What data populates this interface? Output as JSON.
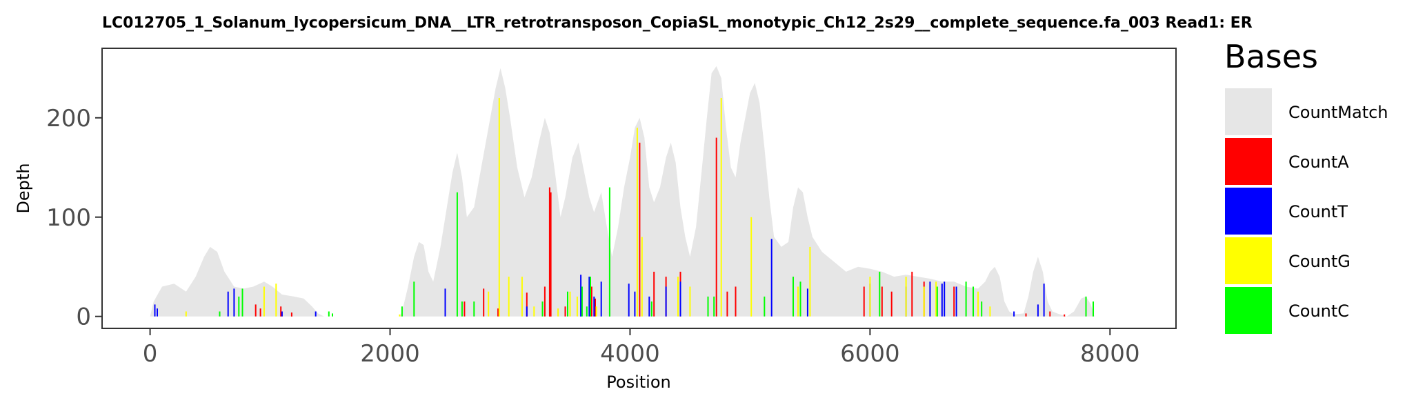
{
  "chart_data": {
    "type": "bar",
    "title": "LC012705_1_Solanum_lycopersicum_DNA__LTR_retrotransposon_CopiaSL_monotypic_Ch12_2s29__complete_sequence.fa_003   Read1: ER",
    "xlabel": "Position",
    "ylabel": "Depth",
    "xlim": [
      -400,
      8550
    ],
    "ylim": [
      -12,
      270
    ],
    "x_ticks": [
      0,
      2000,
      4000,
      6000,
      8000
    ],
    "y_ticks": [
      0,
      100,
      200
    ],
    "legend": {
      "title": "Bases",
      "position": "right",
      "entries": [
        {
          "name": "CountMatch",
          "color": "#e6e6e6"
        },
        {
          "name": "CountA",
          "color": "#ff0000"
        },
        {
          "name": "CountT",
          "color": "#0000ff"
        },
        {
          "name": "CountG",
          "color": "#ffff00"
        },
        {
          "name": "CountC",
          "color": "#00ff00"
        }
      ]
    },
    "coverage": [
      [
        0,
        0
      ],
      [
        30,
        15
      ],
      [
        100,
        30
      ],
      [
        200,
        33
      ],
      [
        300,
        25
      ],
      [
        380,
        40
      ],
      [
        450,
        60
      ],
      [
        500,
        70
      ],
      [
        560,
        65
      ],
      [
        620,
        45
      ],
      [
        700,
        30
      ],
      [
        780,
        28
      ],
      [
        860,
        30
      ],
      [
        950,
        35
      ],
      [
        1020,
        30
      ],
      [
        1100,
        22
      ],
      [
        1200,
        20
      ],
      [
        1280,
        18
      ],
      [
        1350,
        10
      ],
      [
        1400,
        3
      ],
      [
        1450,
        0
      ],
      [
        2080,
        0
      ],
      [
        2100,
        5
      ],
      [
        2150,
        30
      ],
      [
        2200,
        60
      ],
      [
        2240,
        75
      ],
      [
        2280,
        72
      ],
      [
        2320,
        45
      ],
      [
        2360,
        35
      ],
      [
        2420,
        70
      ],
      [
        2480,
        115
      ],
      [
        2520,
        145
      ],
      [
        2560,
        165
      ],
      [
        2600,
        140
      ],
      [
        2640,
        100
      ],
      [
        2700,
        110
      ],
      [
        2760,
        150
      ],
      [
        2820,
        190
      ],
      [
        2880,
        230
      ],
      [
        2920,
        250
      ],
      [
        2960,
        230
      ],
      [
        3000,
        200
      ],
      [
        3060,
        150
      ],
      [
        3120,
        120
      ],
      [
        3180,
        140
      ],
      [
        3240,
        175
      ],
      [
        3290,
        200
      ],
      [
        3330,
        185
      ],
      [
        3380,
        140
      ],
      [
        3420,
        100
      ],
      [
        3460,
        120
      ],
      [
        3520,
        160
      ],
      [
        3570,
        175
      ],
      [
        3610,
        150
      ],
      [
        3660,
        120
      ],
      [
        3700,
        105
      ],
      [
        3760,
        125
      ],
      [
        3800,
        95
      ],
      [
        3850,
        60
      ],
      [
        3900,
        90
      ],
      [
        3950,
        130
      ],
      [
        4000,
        160
      ],
      [
        4040,
        190
      ],
      [
        4080,
        200
      ],
      [
        4120,
        180
      ],
      [
        4160,
        130
      ],
      [
        4200,
        115
      ],
      [
        4250,
        130
      ],
      [
        4300,
        160
      ],
      [
        4340,
        175
      ],
      [
        4380,
        155
      ],
      [
        4420,
        110
      ],
      [
        4460,
        80
      ],
      [
        4500,
        60
      ],
      [
        4550,
        90
      ],
      [
        4600,
        150
      ],
      [
        4640,
        200
      ],
      [
        4680,
        245
      ],
      [
        4720,
        252
      ],
      [
        4760,
        240
      ],
      [
        4800,
        190
      ],
      [
        4840,
        150
      ],
      [
        4880,
        140
      ],
      [
        4920,
        175
      ],
      [
        4960,
        200
      ],
      [
        5000,
        225
      ],
      [
        5040,
        235
      ],
      [
        5080,
        215
      ],
      [
        5120,
        170
      ],
      [
        5160,
        120
      ],
      [
        5200,
        80
      ],
      [
        5260,
        70
      ],
      [
        5320,
        75
      ],
      [
        5360,
        110
      ],
      [
        5400,
        130
      ],
      [
        5440,
        125
      ],
      [
        5480,
        100
      ],
      [
        5520,
        80
      ],
      [
        5600,
        65
      ],
      [
        5700,
        55
      ],
      [
        5800,
        45
      ],
      [
        5900,
        50
      ],
      [
        6000,
        48
      ],
      [
        6100,
        45
      ],
      [
        6200,
        40
      ],
      [
        6300,
        42
      ],
      [
        6400,
        40
      ],
      [
        6500,
        38
      ],
      [
        6600,
        35
      ],
      [
        6700,
        35
      ],
      [
        6800,
        30
      ],
      [
        6900,
        28
      ],
      [
        6960,
        35
      ],
      [
        7000,
        45
      ],
      [
        7040,
        50
      ],
      [
        7080,
        40
      ],
      [
        7120,
        15
      ],
      [
        7160,
        5
      ],
      [
        7200,
        2
      ],
      [
        7280,
        3
      ],
      [
        7320,
        20
      ],
      [
        7360,
        45
      ],
      [
        7400,
        60
      ],
      [
        7440,
        45
      ],
      [
        7480,
        15
      ],
      [
        7520,
        5
      ],
      [
        7560,
        3
      ],
      [
        7640,
        0
      ],
      [
        7700,
        5
      ],
      [
        7760,
        18
      ],
      [
        7800,
        20
      ],
      [
        7840,
        12
      ],
      [
        7870,
        0
      ]
    ],
    "series": [
      {
        "name": "CountA",
        "color": "#ff0000",
        "points": [
          [
            880,
            12
          ],
          [
            920,
            8
          ],
          [
            1090,
            10
          ],
          [
            1180,
            4
          ],
          [
            2620,
            15
          ],
          [
            2780,
            28
          ],
          [
            2900,
            8
          ],
          [
            3140,
            24
          ],
          [
            3290,
            30
          ],
          [
            3330,
            130
          ],
          [
            3340,
            125
          ],
          [
            3460,
            10
          ],
          [
            3680,
            30
          ],
          [
            3710,
            18
          ],
          [
            4080,
            175
          ],
          [
            4200,
            45
          ],
          [
            4300,
            40
          ],
          [
            4420,
            45
          ],
          [
            4720,
            180
          ],
          [
            4810,
            25
          ],
          [
            4880,
            30
          ],
          [
            5950,
            30
          ],
          [
            6100,
            30
          ],
          [
            6180,
            25
          ],
          [
            6350,
            45
          ],
          [
            6450,
            35
          ],
          [
            6700,
            30
          ],
          [
            7300,
            3
          ],
          [
            7500,
            5
          ],
          [
            7620,
            2
          ]
        ]
      },
      {
        "name": "CountT",
        "color": "#0000ff",
        "points": [
          [
            40,
            12
          ],
          [
            60,
            8
          ],
          [
            650,
            25
          ],
          [
            700,
            28
          ],
          [
            1100,
            5
          ],
          [
            1380,
            5
          ],
          [
            2460,
            28
          ],
          [
            3140,
            10
          ],
          [
            3590,
            42
          ],
          [
            3660,
            40
          ],
          [
            3700,
            20
          ],
          [
            3760,
            35
          ],
          [
            3990,
            33
          ],
          [
            4040,
            25
          ],
          [
            4160,
            20
          ],
          [
            4300,
            30
          ],
          [
            4420,
            35
          ],
          [
            5180,
            78
          ],
          [
            5480,
            28
          ],
          [
            6000,
            33
          ],
          [
            6300,
            30
          ],
          [
            6500,
            35
          ],
          [
            6600,
            33
          ],
          [
            6620,
            35
          ],
          [
            6720,
            30
          ],
          [
            7200,
            5
          ],
          [
            7400,
            12
          ],
          [
            7450,
            33
          ]
        ]
      },
      {
        "name": "CountG",
        "color": "#ffff00",
        "points": [
          [
            300,
            5
          ],
          [
            950,
            30
          ],
          [
            1050,
            33
          ],
          [
            2080,
            2
          ],
          [
            2820,
            25
          ],
          [
            2910,
            220
          ],
          [
            2990,
            40
          ],
          [
            3100,
            40
          ],
          [
            3200,
            10
          ],
          [
            3400,
            8
          ],
          [
            3500,
            25
          ],
          [
            3560,
            20
          ],
          [
            3720,
            10
          ],
          [
            4060,
            190
          ],
          [
            4100,
            80
          ],
          [
            4400,
            40
          ],
          [
            4500,
            30
          ],
          [
            4760,
            220
          ],
          [
            5010,
            100
          ],
          [
            5400,
            30
          ],
          [
            5500,
            70
          ],
          [
            6000,
            40
          ],
          [
            6300,
            40
          ],
          [
            6450,
            30
          ],
          [
            6550,
            35
          ],
          [
            6900,
            25
          ],
          [
            7000,
            10
          ]
        ]
      },
      {
        "name": "CountC",
        "color": "#00ff00",
        "points": [
          [
            580,
            5
          ],
          [
            740,
            20
          ],
          [
            770,
            28
          ],
          [
            1490,
            5
          ],
          [
            1520,
            3
          ],
          [
            2100,
            10
          ],
          [
            2200,
            35
          ],
          [
            2560,
            125
          ],
          [
            2600,
            15
          ],
          [
            2700,
            15
          ],
          [
            3270,
            15
          ],
          [
            3480,
            25
          ],
          [
            3600,
            30
          ],
          [
            3640,
            10
          ],
          [
            3670,
            40
          ],
          [
            3830,
            130
          ],
          [
            4180,
            15
          ],
          [
            4650,
            20
          ],
          [
            4700,
            20
          ],
          [
            5120,
            20
          ],
          [
            5360,
            40
          ],
          [
            5420,
            35
          ],
          [
            6080,
            45
          ],
          [
            6560,
            30
          ],
          [
            6800,
            35
          ],
          [
            6860,
            30
          ],
          [
            6930,
            15
          ],
          [
            7800,
            20
          ],
          [
            7860,
            15
          ]
        ]
      }
    ]
  }
}
